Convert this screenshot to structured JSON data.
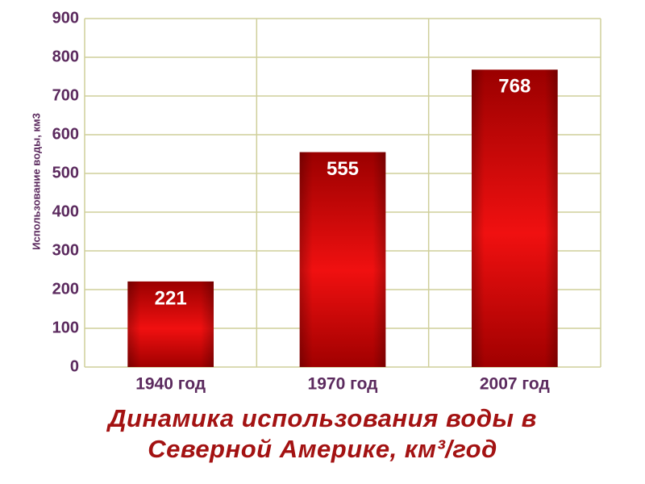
{
  "chart_data": {
    "type": "bar",
    "title": "Динамика использования воды в Северной Америке, км³/год",
    "y_label": "Использование воды, км3",
    "categories": [
      "1940 год",
      "1970 год",
      "2007 год"
    ],
    "values": [
      221,
      555,
      768
    ],
    "color": "#f01010",
    "ylim": [
      0,
      900
    ],
    "yticks": [
      0,
      100,
      200,
      300,
      400,
      500,
      600,
      700,
      800,
      900
    ],
    "grid": true
  }
}
